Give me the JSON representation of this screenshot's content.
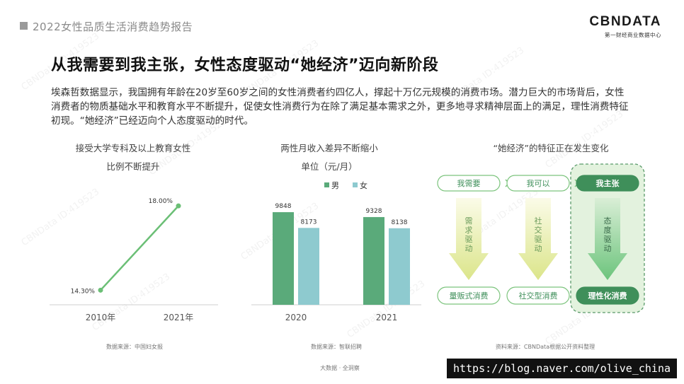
{
  "header": {
    "report_title": "2022女性品质生活消费趋势报告",
    "logo_main": "CBNDATA",
    "logo_sub": "第一财经商业数据中心"
  },
  "headline": "从我需要到我主张，女性态度驱动“她经济”迈向新阶段",
  "intro": "埃森哲数据显示，我国拥有年龄在20岁至60岁之间的女性消费者约四亿人，撑起十万亿元规模的消费市场。潜力巨大的市场背后，女性消费者的物质基础水平和教育水平不断提升，促使女性消费行为在除了满足基本需求之外，更多地寻求精神层面上的满足，理性消费特征初现。“她经济”已经迈向个人态度驱动的时代。",
  "colors": {
    "green": "#5aaa7a",
    "teal": "#8ecacf",
    "line_green": "#6bbf76",
    "light_green": "#e3f2de"
  },
  "chart_data": [
    {
      "type": "line",
      "title_line1": "接受大学专科及以上教育女性",
      "title_line2": "比例不断提升",
      "categories": [
        "2010年",
        "2021年"
      ],
      "values": [
        14.3,
        18.0
      ],
      "value_labels": [
        "14.30%",
        "18.00%"
      ],
      "ylim": [
        14,
        18.5
      ],
      "source": "数据来源：中国妇女报"
    },
    {
      "type": "bar",
      "title_line1": "两性月收入差异不断缩小",
      "title_line2": "单位（元/月）",
      "categories": [
        "2020",
        "2021"
      ],
      "series": [
        {
          "name": "男",
          "values": [
            9848,
            9328
          ]
        },
        {
          "name": "女",
          "values": [
            8173,
            8138
          ]
        }
      ],
      "ylim": [
        0,
        10000
      ],
      "source": "数据来源：智联招聘"
    }
  ],
  "diagram": {
    "title": "“她经济”的特征正在发生变化",
    "top_labels": [
      "我需要",
      "我可以",
      "我主张"
    ],
    "drivers": [
      "需求驱动",
      "社交驱动",
      "态度驱动"
    ],
    "bottom_labels": [
      "量贩式消费",
      "社交型消费",
      "理性化消费"
    ],
    "source": "资料来源：CBNData根据公开资料整理"
  },
  "footer": {
    "source_center": "大数据 · 全洞察",
    "url": "https://blog.naver.com/olive_china"
  },
  "watermark_text": "CBNData ID:419523"
}
